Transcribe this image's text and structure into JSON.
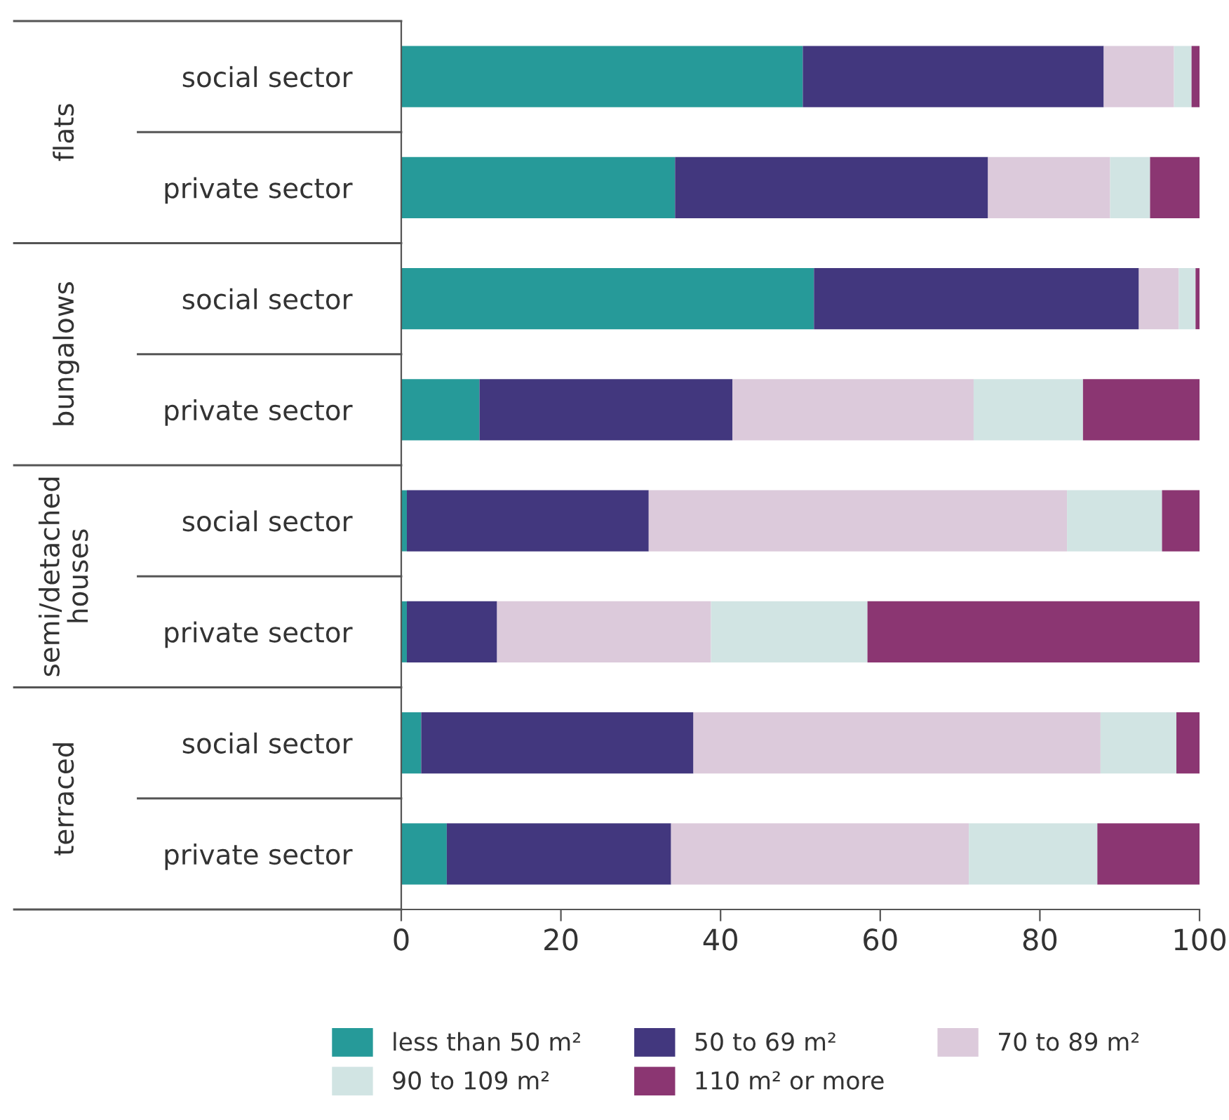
{
  "chart_data": {
    "type": "bar",
    "orientation": "horizontal",
    "stacked": true,
    "categories": [
      "social sector",
      "private sector",
      "social sector",
      "private sector",
      "social sector",
      "private sector",
      "social sector",
      "private sector"
    ],
    "series": [
      {
        "name": "less than 50 m²",
        "color": "#269a99",
        "values": [
          50.3,
          34.3,
          51.7,
          9.8,
          0.7,
          0.7,
          2.5,
          5.7
        ]
      },
      {
        "name": "50 to 69 m²",
        "color": "#42377e",
        "values": [
          37.7,
          39.2,
          40.7,
          31.7,
          30.3,
          11.3,
          34.1,
          28.1
        ]
      },
      {
        "name": "70 to 89 m²",
        "color": "#dccadb",
        "values": [
          8.8,
          15.3,
          5.0,
          30.2,
          52.4,
          26.8,
          51.0,
          37.3
        ]
      },
      {
        "name": "90 to 109 m²",
        "color": "#d1e4e3",
        "values": [
          2.2,
          5.0,
          2.1,
          13.7,
          11.9,
          19.6,
          9.5,
          16.1
        ]
      },
      {
        "name": "110 m² or more",
        "color": "#8b3672",
        "values": [
          1.0,
          6.2,
          0.5,
          14.6,
          4.7,
          41.6,
          2.9,
          12.8
        ]
      }
    ],
    "annotations": [
      "flats",
      "bungalows",
      "semi/detached\nhouses",
      "terraced"
    ],
    "xlim": [
      0,
      100
    ],
    "xticks": [
      0,
      20,
      40,
      60,
      80,
      100
    ],
    "grid": false,
    "legend": "bottom"
  }
}
